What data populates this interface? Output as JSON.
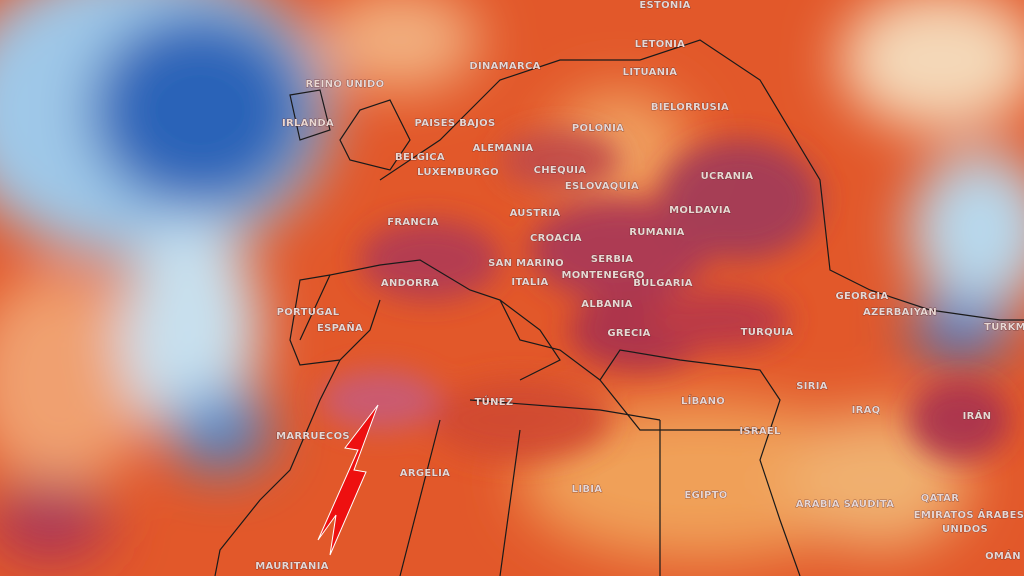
{
  "labels": [
    "ESTONIA",
    "LETONIA",
    "LITUANIA",
    "REINO UNIDO",
    "IRLANDA",
    "DINAMARCA",
    "BIELORRUSIA",
    "POLONIA",
    "PAISES BAJOS",
    "ALEMANIA",
    "BELGICA",
    "LUXEMBURGO",
    "CHEQUIA",
    "ESLOVAQUIA",
    "UCRANIA",
    "MOLDAVIA",
    "FRANCIA",
    "AUSTRIA",
    "CROACIA",
    "RUMANIA",
    "SERBIA",
    "SAN MARINO",
    "MONTENEGRO",
    "BULGARIA",
    "ANDORRA",
    "ITALIA",
    "ALBANIA",
    "PORTUGAL",
    "ESPAÑA",
    "GRECIA",
    "TURQUIA",
    "GEORGIA",
    "AZERBAIYAN",
    "TURKM",
    "SIRIA",
    "LÍBANO",
    "IRAQ",
    "IRÁN",
    "ISRAEL",
    "TÚNEZ",
    "MARRUECOS",
    "ARGELIA",
    "LIBIA",
    "EGIPTO",
    "ARABIA SAUDITA",
    "QATAR",
    "EMIRATOS ÁRABES",
    "UNIDOS",
    "OMÁN",
    "MAURITANIA"
  ]
}
